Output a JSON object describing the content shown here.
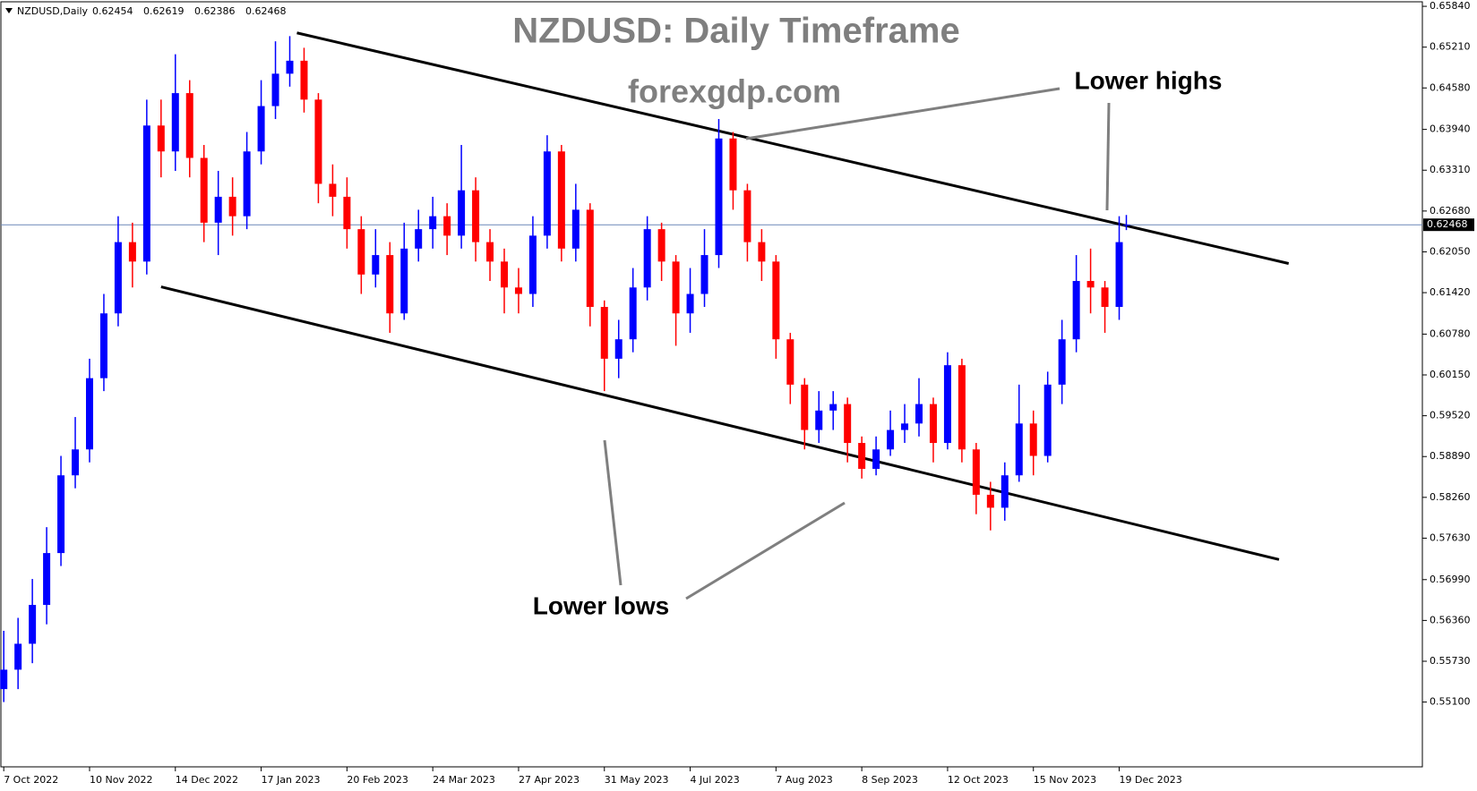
{
  "chart_data": {
    "type": "candlestick",
    "symbol": "NZDUSD,Daily",
    "title": "NZDUSD: Daily Timeframe",
    "subtitle": "forexgdp.com",
    "annotations": [
      "Lower highs",
      "Lower lows"
    ],
    "up_color": "#0000ff",
    "down_color": "#ff0000",
    "price_line_color": "#6b87b8",
    "candles": {
      "x": [
        0,
        4,
        8,
        12,
        16,
        20,
        24,
        28,
        32,
        36,
        40,
        44,
        48,
        52,
        56,
        60,
        64,
        68,
        72,
        76,
        80,
        84,
        88,
        92,
        96,
        100,
        104,
        108,
        112,
        116,
        120,
        124,
        128,
        132,
        136,
        140,
        144,
        148,
        152,
        156,
        160,
        164,
        168,
        172,
        176,
        180,
        184,
        188,
        192,
        196,
        200,
        204,
        208,
        212,
        216,
        220,
        224,
        228,
        232,
        236,
        240,
        244,
        248,
        252,
        256,
        260,
        264,
        268,
        272,
        276,
        280,
        284,
        288,
        292,
        296,
        300,
        304,
        308,
        312,
        314
      ],
      "open": [
        0.553,
        0.556,
        0.56,
        0.566,
        0.574,
        0.586,
        0.59,
        0.601,
        0.611,
        0.622,
        0.619,
        0.64,
        0.636,
        0.645,
        0.635,
        0.625,
        0.629,
        0.626,
        0.636,
        0.643,
        0.648,
        0.65,
        0.644,
        0.631,
        0.629,
        0.624,
        0.617,
        0.62,
        0.611,
        0.621,
        0.624,
        0.626,
        0.623,
        0.63,
        0.622,
        0.619,
        0.615,
        0.614,
        0.623,
        0.636,
        0.621,
        0.627,
        0.612,
        0.604,
        0.607,
        0.615,
        0.624,
        0.619,
        0.611,
        0.614,
        0.62,
        0.638,
        0.63,
        0.622,
        0.619,
        0.607,
        0.6,
        0.593,
        0.596,
        0.597,
        0.591,
        0.587,
        0.59,
        0.593,
        0.594,
        0.597,
        0.591,
        0.603,
        0.59,
        0.583,
        0.581,
        0.586,
        0.594,
        0.589,
        0.6,
        0.607,
        0.616,
        0.615,
        0.612,
        0.62454
      ],
      "high": [
        0.562,
        0.564,
        0.57,
        0.578,
        0.589,
        0.595,
        0.604,
        0.614,
        0.626,
        0.625,
        0.644,
        0.644,
        0.651,
        0.647,
        0.637,
        0.633,
        0.632,
        0.639,
        0.647,
        0.653,
        0.6538,
        0.652,
        0.645,
        0.634,
        0.632,
        0.626,
        0.624,
        0.622,
        0.625,
        0.627,
        0.629,
        0.628,
        0.637,
        0.632,
        0.624,
        0.621,
        0.618,
        0.626,
        0.6385,
        0.637,
        0.631,
        0.628,
        0.613,
        0.61,
        0.618,
        0.626,
        0.625,
        0.62,
        0.618,
        0.624,
        0.641,
        0.639,
        0.631,
        0.624,
        0.62,
        0.608,
        0.601,
        0.599,
        0.599,
        0.598,
        0.592,
        0.592,
        0.596,
        0.597,
        0.601,
        0.598,
        0.605,
        0.604,
        0.591,
        0.585,
        0.588,
        0.6,
        0.596,
        0.602,
        0.61,
        0.62,
        0.621,
        0.616,
        0.626,
        0.62619
      ],
      "low": [
        0.551,
        0.553,
        0.557,
        0.563,
        0.572,
        0.584,
        0.588,
        0.599,
        0.609,
        0.615,
        0.617,
        0.632,
        0.633,
        0.632,
        0.622,
        0.62,
        0.623,
        0.624,
        0.634,
        0.641,
        0.646,
        0.642,
        0.628,
        0.626,
        0.621,
        0.614,
        0.615,
        0.608,
        0.61,
        0.619,
        0.621,
        0.62,
        0.621,
        0.619,
        0.616,
        0.611,
        0.611,
        0.612,
        0.621,
        0.619,
        0.619,
        0.609,
        0.599,
        0.601,
        0.605,
        0.613,
        0.616,
        0.606,
        0.608,
        0.612,
        0.618,
        0.627,
        0.619,
        0.616,
        0.604,
        0.597,
        0.59,
        0.591,
        0.593,
        0.588,
        0.5855,
        0.586,
        0.589,
        0.591,
        0.592,
        0.588,
        0.59,
        0.588,
        0.58,
        0.5775,
        0.579,
        0.585,
        0.586,
        0.588,
        0.597,
        0.605,
        0.611,
        0.608,
        0.61,
        0.62386
      ],
      "close": [
        0.556,
        0.56,
        0.566,
        0.574,
        0.586,
        0.59,
        0.601,
        0.611,
        0.622,
        0.619,
        0.64,
        0.636,
        0.645,
        0.635,
        0.625,
        0.629,
        0.626,
        0.636,
        0.643,
        0.648,
        0.65,
        0.644,
        0.631,
        0.629,
        0.624,
        0.617,
        0.62,
        0.611,
        0.621,
        0.624,
        0.626,
        0.623,
        0.63,
        0.622,
        0.619,
        0.615,
        0.614,
        0.623,
        0.636,
        0.621,
        0.627,
        0.612,
        0.604,
        0.607,
        0.615,
        0.624,
        0.619,
        0.611,
        0.614,
        0.62,
        0.638,
        0.63,
        0.622,
        0.619,
        0.607,
        0.6,
        0.593,
        0.596,
        0.597,
        0.591,
        0.587,
        0.59,
        0.593,
        0.594,
        0.597,
        0.591,
        0.603,
        0.59,
        0.583,
        0.581,
        0.586,
        0.594,
        0.589,
        0.6,
        0.607,
        0.616,
        0.615,
        0.612,
        0.622,
        0.62468
      ]
    },
    "trendlines": [
      {
        "x": [
          82,
          359.4
        ],
        "y": [
          0.6543,
          0.6187
        ]
      },
      {
        "x": [
          44,
          356.7
        ],
        "y": [
          0.6151,
          0.573
        ]
      }
    ],
    "xlim": [
      -0.8,
      396.8
    ],
    "ylim": [
      0.541,
      0.6591
    ],
    "xticks": [
      {
        "value": 0,
        "label": "7 Oct 2022"
      },
      {
        "value": 24,
        "label": "10 Nov 2022"
      },
      {
        "value": 48,
        "label": "14 Dec 2022"
      },
      {
        "value": 72,
        "label": "17 Jan 2023"
      },
      {
        "value": 96,
        "label": "20 Feb 2023"
      },
      {
        "value": 120,
        "label": "24 Mar 2023"
      },
      {
        "value": 144,
        "label": "27 Apr 2023"
      },
      {
        "value": 168,
        "label": "31 May 2023"
      },
      {
        "value": 192,
        "label": "4 Jul 2023"
      },
      {
        "value": 216,
        "label": "7 Aug 2023"
      },
      {
        "value": 240,
        "label": "8 Sep 2023"
      },
      {
        "value": 264,
        "label": "12 Oct 2023"
      },
      {
        "value": 288,
        "label": "15 Nov 2023"
      },
      {
        "value": 312,
        "label": "19 Dec 2023"
      }
    ],
    "yticks": [
      {
        "value": 0.6584,
        "label": "0.65840"
      },
      {
        "value": 0.6521,
        "label": "0.65210"
      },
      {
        "value": 0.6458,
        "label": "0.64580"
      },
      {
        "value": 0.6394,
        "label": "0.63940"
      },
      {
        "value": 0.6331,
        "label": "0.63310"
      },
      {
        "value": 0.6268,
        "label": "0.62680"
      },
      {
        "value": 0.6205,
        "label": "0.62050"
      },
      {
        "value": 0.6142,
        "label": "0.61420"
      },
      {
        "value": 0.6078,
        "label": "0.60780"
      },
      {
        "value": 0.6015,
        "label": "0.60150"
      },
      {
        "value": 0.5952,
        "label": "0.59520"
      },
      {
        "value": 0.5889,
        "label": "0.58890"
      },
      {
        "value": 0.5826,
        "label": "0.58260"
      },
      {
        "value": 0.5763,
        "label": "0.57630"
      },
      {
        "value": 0.5699,
        "label": "0.56990"
      },
      {
        "value": 0.5636,
        "label": "0.56360"
      },
      {
        "value": 0.5573,
        "label": "0.55730"
      },
      {
        "value": 0.551,
        "label": "0.55100"
      }
    ]
  }
}
